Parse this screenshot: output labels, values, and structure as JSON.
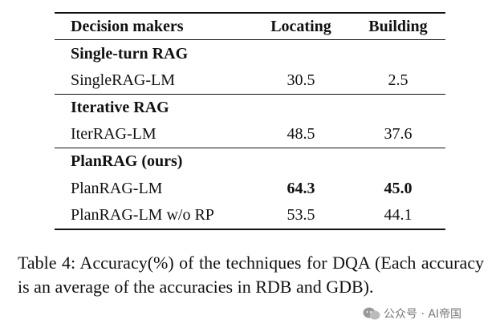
{
  "table": {
    "header": [
      "Decision makers",
      "Locating",
      "Building"
    ],
    "groups": [
      {
        "label": "Single-turn RAG",
        "rows": [
          [
            "SingleRAG-LM",
            "30.5",
            "2.5"
          ]
        ]
      },
      {
        "label": "Iterative RAG",
        "rows": [
          [
            "IterRAG-LM",
            "48.5",
            "37.6"
          ]
        ]
      },
      {
        "label": "PlanRAG (ours)",
        "rows": [
          [
            "PlanRAG-LM",
            "64.3",
            "45.0"
          ],
          [
            "PlanRAG-LM w/o RP",
            "53.5",
            "44.1"
          ]
        ]
      }
    ]
  },
  "caption": "Table 4: Accuracy(%) of the techniques for DQA (Each accuracy is an average of the accuracies in RDB and GDB).",
  "watermark": "公众号 · AI帝国"
}
